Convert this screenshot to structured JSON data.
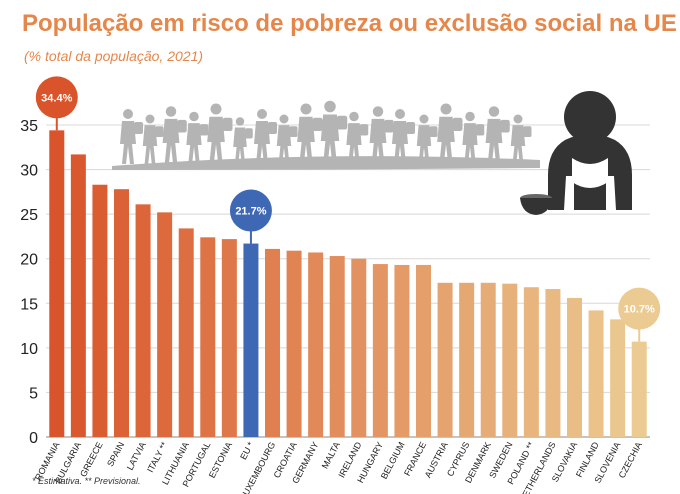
{
  "header": {
    "title": "População em risco de pobreza ou exclusão social na UE",
    "subtitle": "(% total da população, 2021)"
  },
  "footnote": "* Estimativa. ** Previsional.",
  "colors": {
    "title": "#e5874a",
    "eu_bar": "#3e68b3",
    "gradient_start": "#d9542a",
    "gradient_end": "#ebcb92",
    "grid": "#d8d8d8",
    "icons": "#b4b4b4",
    "person_icon": "#333333"
  },
  "icons": [
    "crowd-of-migrants-icon",
    "sad-seated-person-icon",
    "begging-bowl-icon"
  ],
  "chart_data": {
    "type": "bar",
    "ylim": [
      0,
      35
    ],
    "yticks": [
      0,
      5,
      10,
      15,
      20,
      25,
      30,
      35
    ],
    "grid": true,
    "categories": [
      "ROMANIA",
      "BULGARIA",
      "GREECE",
      "SPAIN",
      "LATVIA",
      "ITALY **",
      "LITHUANIA",
      "PORTUGAL",
      "ESTONIA",
      "EU *",
      "LUXEMBOURG",
      "CROATIA",
      "GERMANY",
      "MALTA",
      "IRELAND",
      "HUNGARY",
      "BELGIUM",
      "FRANCE",
      "AUSTRIA",
      "CYPRUS",
      "DENMARK",
      "SWEDEN",
      "POLAND **",
      "NETHERLANDS",
      "SLOVAKIA",
      "FINLAND",
      "SLOVENIA",
      "CZECHIA"
    ],
    "values": [
      34.4,
      31.7,
      28.3,
      27.8,
      26.1,
      25.2,
      23.4,
      22.4,
      22.2,
      21.7,
      21.1,
      20.9,
      20.7,
      20.3,
      20.0,
      19.4,
      19.3,
      19.3,
      17.3,
      17.3,
      17.3,
      17.2,
      16.8,
      16.6,
      15.6,
      14.2,
      13.2,
      10.7
    ],
    "highlight": "EU *",
    "callouts": [
      {
        "category": "ROMANIA",
        "label": "34.4%"
      },
      {
        "category": "EU *",
        "label": "21.7%"
      },
      {
        "category": "CZECHIA",
        "label": "10.7%"
      }
    ]
  }
}
